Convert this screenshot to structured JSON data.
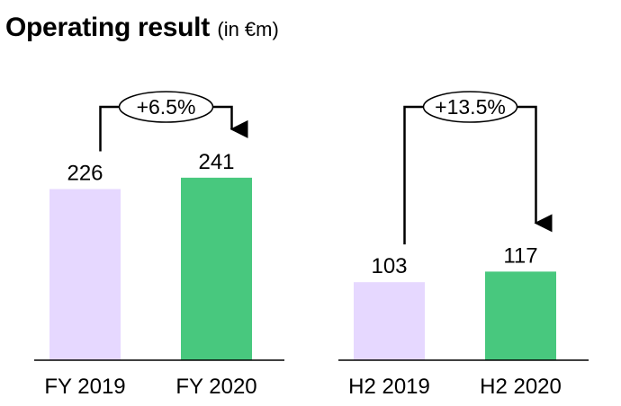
{
  "header": {
    "title": "Operating result",
    "unit": "(in €m)"
  },
  "colors": {
    "bar_prior": "#e6d8ff",
    "bar_current": "#48c87e",
    "axis": "#000000"
  },
  "chart_data": [
    {
      "type": "bar",
      "categories": [
        "FY 2019",
        "FY 2020"
      ],
      "values": [
        226,
        241
      ],
      "change_label": "+6.5%",
      "title": "",
      "xlabel": "",
      "ylabel": ""
    },
    {
      "type": "bar",
      "categories": [
        "H2 2019",
        "H2 2020"
      ],
      "values": [
        103,
        117
      ],
      "change_label": "+13.5%",
      "title": "",
      "xlabel": "",
      "ylabel": ""
    }
  ]
}
